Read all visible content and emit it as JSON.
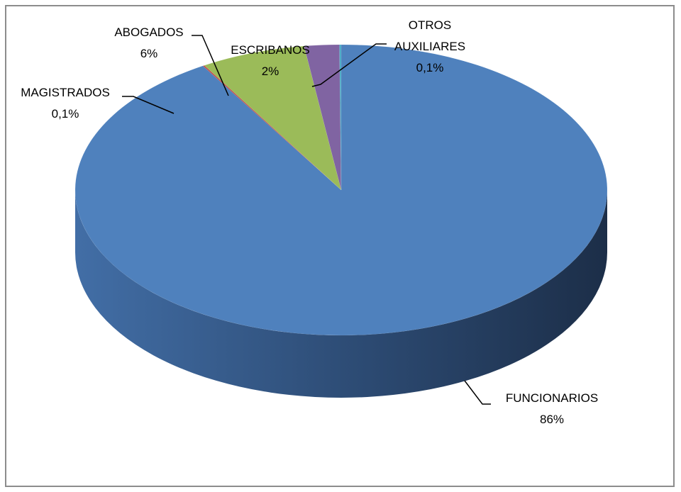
{
  "chart_data": {
    "type": "pie",
    "categories": [
      "FUNCIONARIOS",
      "MAGISTRADOS",
      "ABOGADOS",
      "ESCRIBANOS",
      "OTROS AUXILIARES"
    ],
    "values": [
      86,
      0.1,
      6,
      2,
      0.1
    ],
    "value_labels": [
      "86%",
      "0,1%",
      "6%",
      "2%",
      "0,1%"
    ],
    "colors": [
      "#4f81bd",
      "#c0504d",
      "#9bbb59",
      "#8064a2",
      "#4bacc6"
    ]
  }
}
